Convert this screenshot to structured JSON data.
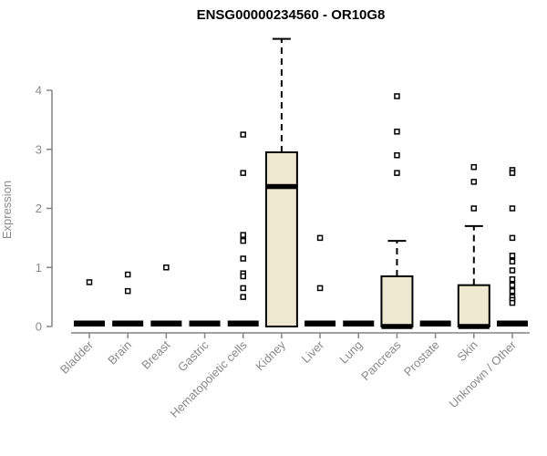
{
  "title": "ENSG00000234560 - OR10G8",
  "chart_data": {
    "type": "boxplot",
    "title": "ENSG00000234560 - OR10G8",
    "xlabel": "",
    "ylabel": "Expression",
    "ylim": [
      0,
      4.9
    ],
    "yticks": [
      0,
      1,
      2,
      3,
      4
    ],
    "grid": false,
    "legend": "none",
    "colors": {
      "box_fill": "#EDE8CF",
      "box_stroke": "#000000",
      "axis": "#848484",
      "title": "#000000",
      "tick_label": "#8a8a8a"
    },
    "categories": [
      "Bladder",
      "Brain",
      "Breast",
      "Gastric",
      "Hematopoietic cells",
      "Kidney",
      "Liver",
      "Lung",
      "Pancreas",
      "Prostate",
      "Skin",
      "Unknown / Other"
    ],
    "series": [
      {
        "category": "Bladder",
        "q1": 0,
        "median": 0,
        "q3": 0,
        "whisker_low": 0,
        "whisker_high": 0,
        "outliers": [
          0.75
        ]
      },
      {
        "category": "Brain",
        "q1": 0,
        "median": 0,
        "q3": 0,
        "whisker_low": 0,
        "whisker_high": 0,
        "outliers": [
          0.88,
          0.6
        ]
      },
      {
        "category": "Breast",
        "q1": 0,
        "median": 0,
        "q3": 0,
        "whisker_low": 0,
        "whisker_high": 0,
        "outliers": [
          1.0
        ]
      },
      {
        "category": "Gastric",
        "q1": 0,
        "median": 0,
        "q3": 0,
        "whisker_low": 0,
        "whisker_high": 0,
        "outliers": []
      },
      {
        "category": "Hematopoietic cells",
        "q1": 0,
        "median": 0,
        "q3": 0,
        "whisker_low": 0,
        "whisker_high": 0,
        "outliers": [
          3.25,
          2.6,
          1.55,
          1.45,
          1.15,
          0.9,
          0.85,
          0.65,
          0.5
        ]
      },
      {
        "category": "Kidney",
        "q1": 0,
        "median": 2.37,
        "q3": 2.95,
        "whisker_low": 0,
        "whisker_high": 4.87,
        "outliers": []
      },
      {
        "category": "Liver",
        "q1": 0,
        "median": 0,
        "q3": 0,
        "whisker_low": 0,
        "whisker_high": 0,
        "outliers": [
          1.5,
          0.65
        ]
      },
      {
        "category": "Lung",
        "q1": 0,
        "median": 0,
        "q3": 0,
        "whisker_low": 0,
        "whisker_high": 0,
        "outliers": []
      },
      {
        "category": "Pancreas",
        "q1": 0,
        "median": 0,
        "q3": 0.85,
        "whisker_low": 0,
        "whisker_high": 1.45,
        "outliers": [
          3.9,
          3.3,
          2.9,
          2.6
        ]
      },
      {
        "category": "Prostate",
        "q1": 0,
        "median": 0,
        "q3": 0,
        "whisker_low": 0,
        "whisker_high": 0,
        "outliers": []
      },
      {
        "category": "Skin",
        "q1": 0,
        "median": 0,
        "q3": 0.7,
        "whisker_low": 0,
        "whisker_high": 1.7,
        "outliers": [
          2.7,
          2.45,
          2.0
        ]
      },
      {
        "category": "Unknown / Other",
        "q1": 0,
        "median": 0,
        "q3": 0,
        "whisker_low": 0,
        "whisker_high": 0,
        "outliers": [
          2.65,
          2.6,
          2.0,
          1.5,
          1.2,
          1.1,
          0.95,
          0.8,
          0.7,
          0.6,
          0.5,
          0.45,
          0.4
        ]
      }
    ]
  }
}
